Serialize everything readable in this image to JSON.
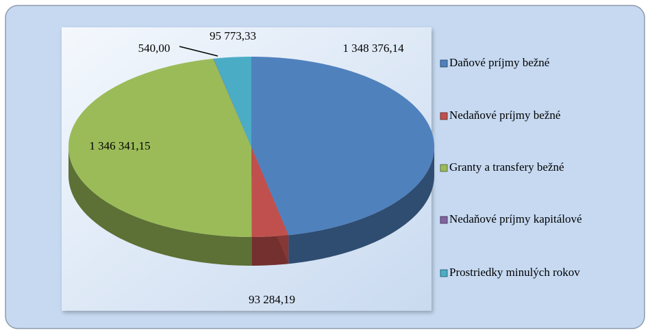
{
  "chart_data": {
    "type": "pie",
    "categories": [
      "Daňové príjmy bežné",
      "Nedaňové príjmy bežné",
      "Granty a transfery bežné",
      "Nedaňové príjmy kapitálové",
      "Prostriedky minulých rokov"
    ],
    "values": [
      1348376.14,
      93284.19,
      1346341.15,
      540.0,
      95773.33
    ],
    "value_labels": [
      "1 348 376,14",
      "93 284,19",
      "1 346 341,15",
      "540,00",
      "95 773,33"
    ],
    "colors": [
      "#4f81bd",
      "#c0504d",
      "#9bbb59",
      "#8064a2",
      "#4bacc6"
    ],
    "legend": "right"
  }
}
